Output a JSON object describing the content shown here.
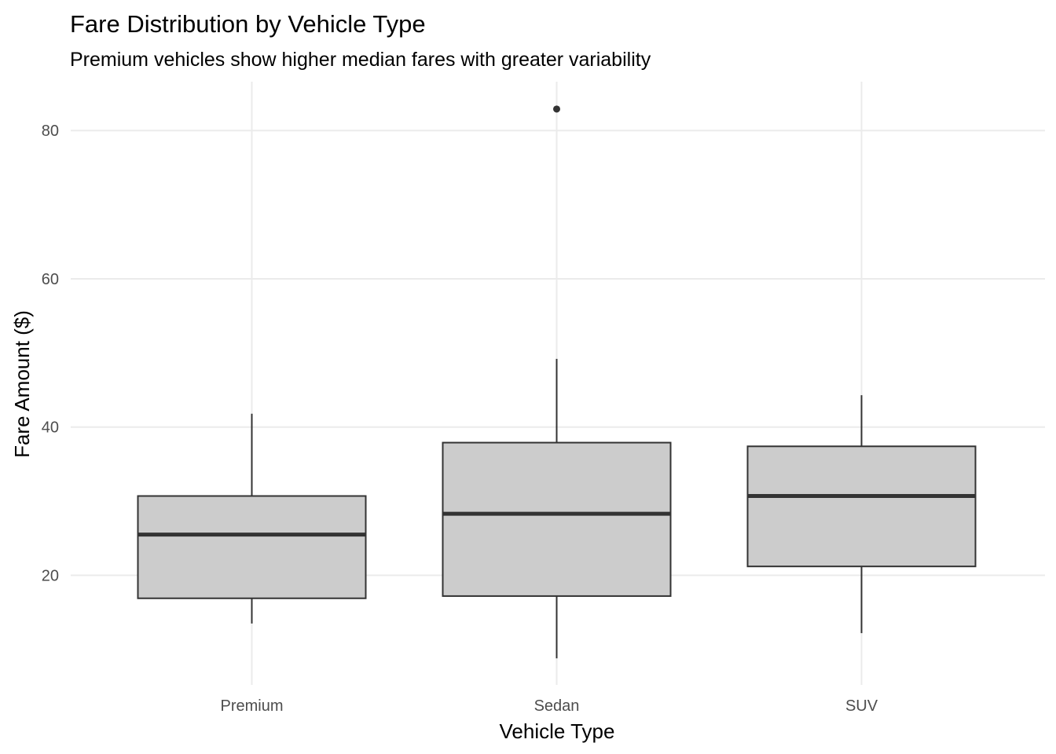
{
  "chart_data": {
    "type": "box",
    "title": "Fare Distribution by Vehicle Type",
    "subtitle": "Premium vehicles show higher median fares with greater variability",
    "xlabel": "Vehicle Type",
    "ylabel": "Fare Amount ($)",
    "ylim": [
      5.5,
      87
    ],
    "yticks": [
      20,
      40,
      60,
      80
    ],
    "grid": true,
    "legend": "none",
    "categories": [
      "Premium",
      "Sedan",
      "SUV"
    ],
    "boxes": [
      {
        "category": "Premium",
        "min": 13.5,
        "q1": 16.9,
        "median": 25.5,
        "q3": 30.7,
        "max": 41.8,
        "outliers": []
      },
      {
        "category": "Sedan",
        "min": 8.8,
        "q1": 17.2,
        "median": 28.3,
        "q3": 37.9,
        "max": 49.2,
        "outliers": [
          82.9
        ]
      },
      {
        "category": "SUV",
        "min": 12.2,
        "q1": 21.2,
        "median": 30.7,
        "q3": 37.4,
        "max": 44.3,
        "outliers": []
      }
    ],
    "colors": {
      "fill": "#cccccc",
      "stroke": "#333333",
      "grid": "#ebebeb"
    }
  }
}
